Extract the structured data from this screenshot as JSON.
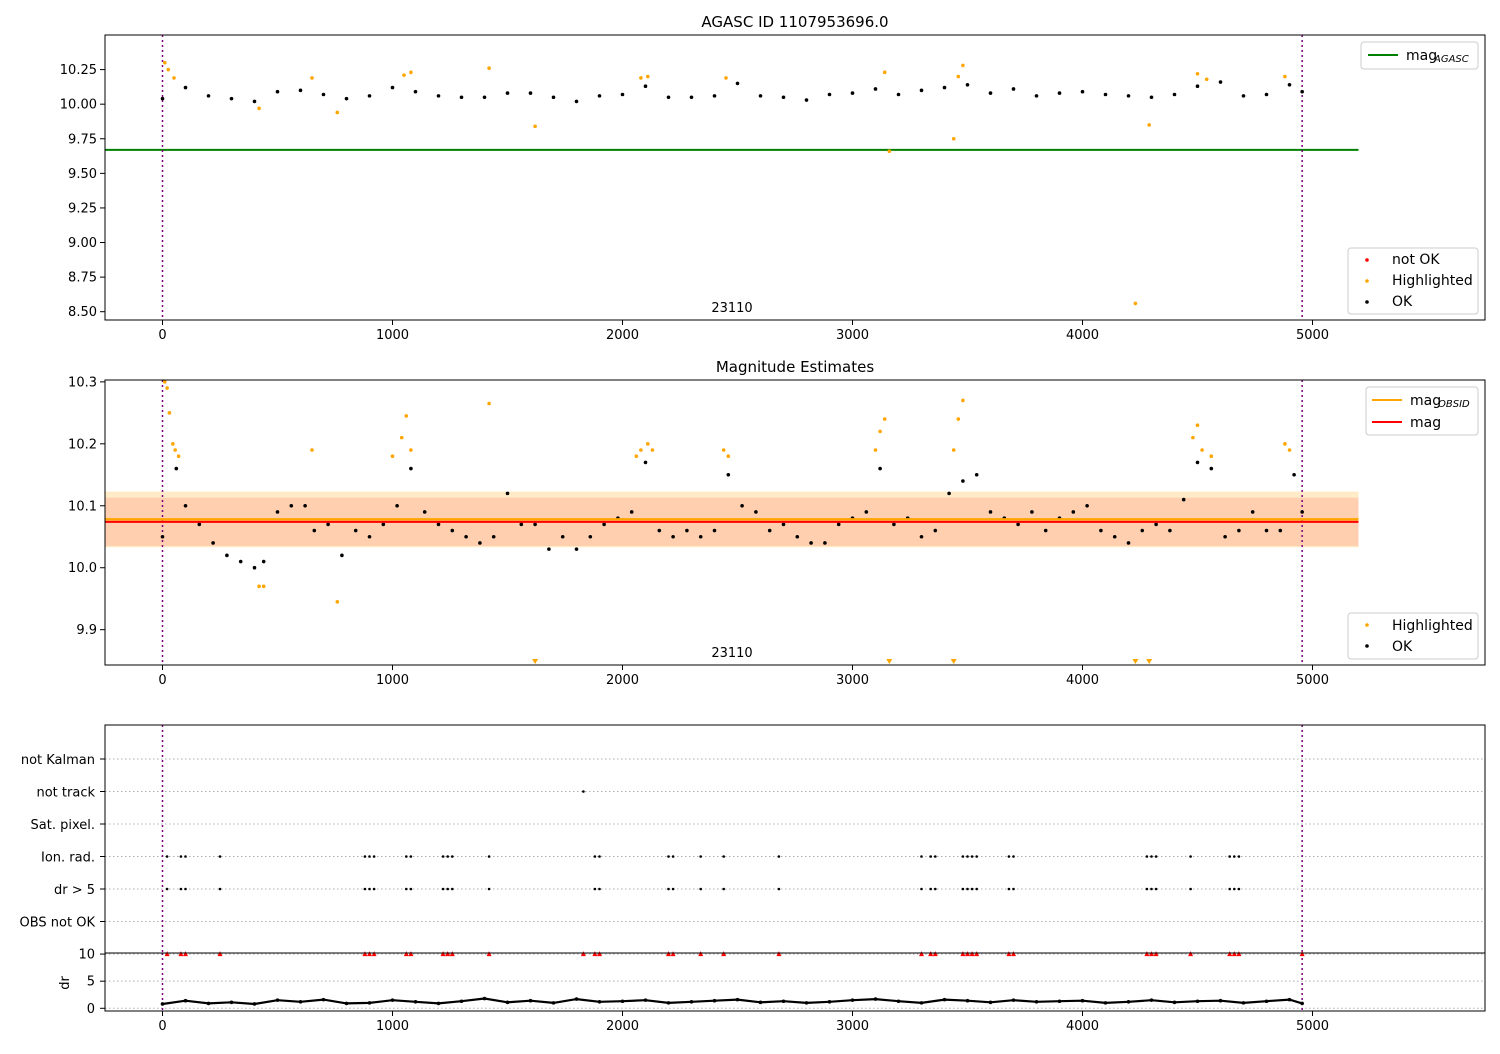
{
  "colors": {
    "ok": "#000000",
    "highlighted": "#ffa500",
    "not_ok": "#ff0000",
    "mag_agasc_line": "#008000",
    "mag_obsid_line": "#ffa500",
    "mag_line": "#ff0000",
    "obsid_vline": "#800080",
    "band_orange": "#ffa500",
    "band_red": "#ff9aa8"
  },
  "chart_data": [
    {
      "type": "scatter",
      "title": "AGASC ID 1107953696.0",
      "xlim": [
        -250,
        5750
      ],
      "ylim": [
        8.44,
        10.5
      ],
      "x_ticks": [
        0,
        1000,
        2000,
        3000,
        4000,
        5000
      ],
      "y_ticks": [
        8.5,
        8.75,
        9.0,
        9.25,
        9.5,
        9.75,
        10.0,
        10.25
      ],
      "y_tick_labels": [
        "8.50",
        "8.75",
        "9.00",
        "9.25",
        "9.50",
        "9.75",
        "10.00",
        "10.25"
      ],
      "grid": false,
      "obsid_label": "23110",
      "obsid_bounds": [
        0,
        4955
      ],
      "mag_agasc": 9.67,
      "hline_x_range": [
        -250,
        5200
      ],
      "legend_lines": [
        {
          "label": "mag",
          "sub": "AGASC"
        }
      ],
      "legend_points": [
        "not OK",
        "Highlighted",
        "OK"
      ],
      "series": [
        {
          "name": "OK",
          "x": [
            0,
            100,
            200,
            300,
            400,
            500,
            600,
            700,
            800,
            900,
            1000,
            1100,
            1200,
            1300,
            1400,
            1500,
            1600,
            1700,
            1800,
            1900,
            2000,
            2100,
            2200,
            2300,
            2400,
            2500,
            2600,
            2700,
            2800,
            2900,
            3000,
            3100,
            3200,
            3300,
            3400,
            3500,
            3600,
            3700,
            3800,
            3900,
            4000,
            4100,
            4200,
            4300,
            4400,
            4500,
            4600,
            4700,
            4800,
            4900,
            4955
          ],
          "y": [
            10.04,
            10.12,
            10.06,
            10.04,
            10.02,
            10.09,
            10.1,
            10.07,
            10.04,
            10.06,
            10.12,
            10.09,
            10.06,
            10.05,
            10.05,
            10.08,
            10.08,
            10.05,
            10.02,
            10.06,
            10.07,
            10.13,
            10.05,
            10.05,
            10.06,
            10.15,
            10.06,
            10.05,
            10.03,
            10.07,
            10.08,
            10.11,
            10.07,
            10.1,
            10.12,
            10.14,
            10.08,
            10.11,
            10.06,
            10.08,
            10.09,
            10.07,
            10.06,
            10.05,
            10.07,
            10.13,
            10.16,
            10.06,
            10.07,
            10.14,
            10.09
          ]
        },
        {
          "name": "Highlighted",
          "x": [
            10,
            25,
            50,
            420,
            650,
            760,
            1050,
            1080,
            1420,
            1620,
            2080,
            2110,
            2450,
            3140,
            3160,
            3440,
            3460,
            3480,
            4230,
            4290,
            4500,
            4540,
            4880
          ],
          "y": [
            10.3,
            10.25,
            10.19,
            9.97,
            10.19,
            9.94,
            10.21,
            10.23,
            10.26,
            9.84,
            10.19,
            10.2,
            10.19,
            10.23,
            9.66,
            9.75,
            10.2,
            10.28,
            8.56,
            9.85,
            10.22,
            10.18,
            10.2
          ]
        }
      ]
    },
    {
      "type": "scatter",
      "title": "Magnitude Estimates",
      "xlim": [
        -250,
        5750
      ],
      "ylim": [
        9.843,
        10.303
      ],
      "x_ticks": [
        0,
        1000,
        2000,
        3000,
        4000,
        5000
      ],
      "y_ticks": [
        9.9,
        10.0,
        10.1,
        10.2,
        10.3
      ],
      "y_tick_labels": [
        "9.9",
        "10.0",
        "10.1",
        "10.2",
        "10.3"
      ],
      "grid": false,
      "obsid_label": "23110",
      "obsid_bounds": [
        0,
        4955
      ],
      "mag_obsid": 10.078,
      "mag": 10.074,
      "hline_x_range": [
        -250,
        5200
      ],
      "band_obsid": [
        10.033,
        10.123
      ],
      "band_mag": [
        10.035,
        10.113
      ],
      "legend_lines": [
        {
          "label": "mag",
          "sub": "OBSID"
        },
        {
          "label": "mag",
          "sub": ""
        }
      ],
      "legend_points": [
        "Highlighted",
        "OK"
      ],
      "series": [
        {
          "name": "OK",
          "x": [
            0,
            60,
            100,
            160,
            220,
            280,
            340,
            400,
            440,
            500,
            560,
            620,
            660,
            720,
            780,
            840,
            900,
            960,
            1020,
            1080,
            1140,
            1200,
            1260,
            1320,
            1380,
            1440,
            1500,
            1560,
            1620,
            1680,
            1740,
            1800,
            1860,
            1920,
            1980,
            2040,
            2100,
            2160,
            2220,
            2280,
            2340,
            2400,
            2460,
            2520,
            2580,
            2640,
            2700,
            2760,
            2820,
            2880,
            2940,
            3000,
            3060,
            3120,
            3180,
            3240,
            3300,
            3360,
            3420,
            3480,
            3540,
            3600,
            3660,
            3720,
            3780,
            3840,
            3900,
            3960,
            4020,
            4080,
            4140,
            4200,
            4260,
            4320,
            4380,
            4440,
            4500,
            4560,
            4620,
            4680,
            4740,
            4800,
            4860,
            4920,
            4955
          ],
          "y": [
            10.05,
            10.16,
            10.1,
            10.07,
            10.04,
            10.02,
            10.01,
            10.0,
            10.01,
            10.09,
            10.1,
            10.1,
            10.06,
            10.07,
            10.02,
            10.06,
            10.05,
            10.07,
            10.1,
            10.16,
            10.09,
            10.07,
            10.06,
            10.05,
            10.04,
            10.05,
            10.12,
            10.07,
            10.07,
            10.03,
            10.05,
            10.03,
            10.05,
            10.07,
            10.08,
            10.09,
            10.17,
            10.06,
            10.05,
            10.06,
            10.05,
            10.06,
            10.15,
            10.1,
            10.09,
            10.06,
            10.07,
            10.05,
            10.04,
            10.04,
            10.07,
            10.08,
            10.09,
            10.16,
            10.07,
            10.08,
            10.05,
            10.06,
            10.12,
            10.14,
            10.15,
            10.09,
            10.08,
            10.07,
            10.09,
            10.06,
            10.08,
            10.09,
            10.1,
            10.06,
            10.05,
            10.04,
            10.06,
            10.07,
            10.06,
            10.11,
            10.17,
            10.16,
            10.05,
            10.06,
            10.09,
            10.06,
            10.06,
            10.15,
            10.09
          ]
        },
        {
          "name": "Highlighted",
          "x": [
            10,
            20,
            30,
            45,
            55,
            70,
            420,
            440,
            650,
            760,
            1000,
            1040,
            1060,
            1080,
            1420,
            2060,
            2080,
            2110,
            2130,
            2440,
            2460,
            3100,
            3120,
            3140,
            3440,
            3460,
            3480,
            4480,
            4500,
            4520,
            4560,
            4880,
            4900
          ],
          "y": [
            10.3,
            10.29,
            10.25,
            10.2,
            10.19,
            10.18,
            9.97,
            9.97,
            10.19,
            9.945,
            10.18,
            10.21,
            10.245,
            10.19,
            10.265,
            10.18,
            10.19,
            10.2,
            10.19,
            10.19,
            10.18,
            10.19,
            10.22,
            10.24,
            10.19,
            10.24,
            10.27,
            10.21,
            10.23,
            10.19,
            10.18,
            10.2,
            10.19
          ]
        },
        {
          "name": "out-of-range",
          "x": [
            1620,
            3160,
            3440,
            4230,
            4290
          ],
          "y": [
            9.843,
            9.843,
            9.843,
            9.843,
            9.843
          ]
        }
      ]
    },
    {
      "type": "scatter",
      "title": "",
      "xlim": [
        -250,
        5750
      ],
      "categories": [
        "not Kalman",
        "not track",
        "Sat. pixel.",
        "Ion. rad.",
        "dr > 5",
        "OBS not OK"
      ],
      "grid": true,
      "obsid_bounds": [
        0,
        4955
      ],
      "series": [
        {
          "name": "not track",
          "x": [
            1830
          ],
          "y": [
            "not track"
          ]
        },
        {
          "name": "Ion. rad.",
          "x": [
            20,
            80,
            100,
            250,
            880,
            900,
            920,
            1060,
            1080,
            1220,
            1240,
            1260,
            1420,
            1880,
            1900,
            2200,
            2220,
            2340,
            2440,
            2680,
            3300,
            3340,
            3360,
            3480,
            3500,
            3520,
            3540,
            3680,
            3700,
            4280,
            4300,
            4320,
            4470,
            4640,
            4660,
            4680
          ],
          "y": [
            "Ion. rad.",
            "Ion. rad.",
            "Ion. rad.",
            "Ion. rad.",
            "Ion. rad.",
            "Ion. rad.",
            "Ion. rad.",
            "Ion. rad.",
            "Ion. rad.",
            "Ion. rad.",
            "Ion. rad.",
            "Ion. rad.",
            "Ion. rad.",
            "Ion. rad.",
            "Ion. rad.",
            "Ion. rad.",
            "Ion. rad.",
            "Ion. rad.",
            "Ion. rad.",
            "Ion. rad.",
            "Ion. rad.",
            "Ion. rad.",
            "Ion. rad.",
            "Ion. rad.",
            "Ion. rad.",
            "Ion. rad.",
            "Ion. rad.",
            "Ion. rad.",
            "Ion. rad.",
            "Ion. rad.",
            "Ion. rad.",
            "Ion. rad.",
            "Ion. rad.",
            "Ion. rad.",
            "Ion. rad.",
            "Ion. rad."
          ]
        },
        {
          "name": "dr > 5",
          "x": [
            20,
            80,
            100,
            250,
            880,
            900,
            920,
            1060,
            1080,
            1220,
            1240,
            1260,
            1420,
            1880,
            1900,
            2200,
            2220,
            2340,
            2440,
            2680,
            3300,
            3340,
            3360,
            3480,
            3500,
            3520,
            3540,
            3680,
            3700,
            4280,
            4300,
            4320,
            4470,
            4640,
            4660,
            4680
          ],
          "y": [
            "dr > 5",
            "dr > 5",
            "dr > 5",
            "dr > 5",
            "dr > 5",
            "dr > 5",
            "dr > 5",
            "dr > 5",
            "dr > 5",
            "dr > 5",
            "dr > 5",
            "dr > 5",
            "dr > 5",
            "dr > 5",
            "dr > 5",
            "dr > 5",
            "dr > 5",
            "dr > 5",
            "dr > 5",
            "dr > 5",
            "dr > 5",
            "dr > 5",
            "dr > 5",
            "dr > 5",
            "dr > 5",
            "dr > 5",
            "dr > 5",
            "dr > 5",
            "dr > 5",
            "dr > 5",
            "dr > 5",
            "dr > 5",
            "dr > 5",
            "dr > 5",
            "dr > 5",
            "dr > 5"
          ]
        }
      ]
    },
    {
      "type": "scatter",
      "title": "",
      "xlim": [
        -250,
        5750
      ],
      "ylim": [
        -0.5,
        10.2
      ],
      "x_ticks": [
        0,
        1000,
        2000,
        3000,
        4000,
        5000
      ],
      "y_ticks": [
        0,
        5,
        10
      ],
      "y_tick_labels": [
        "0",
        "5",
        "10"
      ],
      "ylabel": "dr",
      "grid": true,
      "obsid_bounds": [
        0,
        4955
      ],
      "series": [
        {
          "name": "dr",
          "x": [
            0,
            100,
            200,
            300,
            400,
            500,
            600,
            700,
            800,
            900,
            1000,
            1100,
            1200,
            1300,
            1400,
            1500,
            1600,
            1700,
            1800,
            1900,
            2000,
            2100,
            2200,
            2300,
            2400,
            2500,
            2600,
            2700,
            2800,
            2900,
            3000,
            3100,
            3200,
            3300,
            3400,
            3500,
            3600,
            3700,
            3800,
            3900,
            4000,
            4100,
            4200,
            4300,
            4400,
            4500,
            4600,
            4700,
            4800,
            4900,
            4955
          ],
          "y": [
            0.8,
            1.4,
            0.9,
            1.1,
            0.8,
            1.5,
            1.2,
            1.6,
            0.9,
            1.0,
            1.5,
            1.2,
            0.9,
            1.3,
            1.8,
            1.1,
            1.4,
            1.0,
            1.7,
            1.2,
            1.3,
            1.5,
            1.0,
            1.2,
            1.4,
            1.6,
            1.1,
            1.3,
            1.0,
            1.2,
            1.5,
            1.7,
            1.3,
            1.0,
            1.6,
            1.4,
            1.1,
            1.5,
            1.2,
            1.3,
            1.4,
            1.0,
            1.2,
            1.5,
            1.1,
            1.3,
            1.4,
            1.0,
            1.3,
            1.6,
            0.9
          ]
        },
        {
          "name": "dr clipped",
          "x": [
            20,
            80,
            100,
            250,
            880,
            900,
            920,
            1060,
            1080,
            1220,
            1240,
            1260,
            1420,
            1830,
            1880,
            1900,
            2200,
            2220,
            2340,
            2440,
            2680,
            3300,
            3340,
            3360,
            3480,
            3500,
            3520,
            3540,
            3680,
            3700,
            4280,
            4300,
            4320,
            4470,
            4640,
            4660,
            4680,
            4955
          ],
          "y": [
            10,
            10,
            10,
            10,
            10,
            10,
            10,
            10,
            10,
            10,
            10,
            10,
            10,
            10,
            10,
            10,
            10,
            10,
            10,
            10,
            10,
            10,
            10,
            10,
            10,
            10,
            10,
            10,
            10,
            10,
            10,
            10,
            10,
            10,
            10,
            10,
            10,
            10
          ]
        }
      ]
    }
  ]
}
